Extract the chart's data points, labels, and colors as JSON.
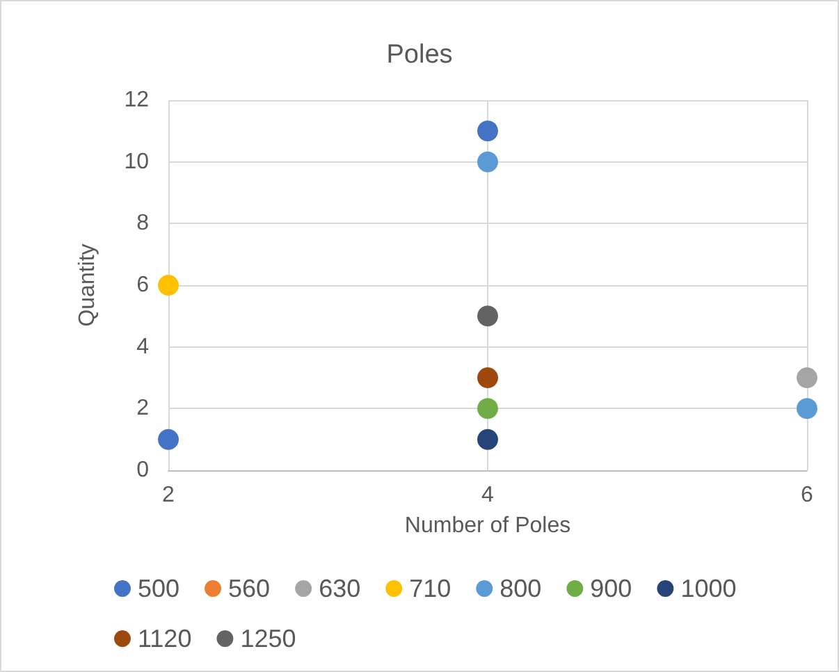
{
  "chart_data": {
    "type": "scatter",
    "title": "Poles",
    "xlabel": "Number of Poles",
    "ylabel": "Quantity",
    "xlim": [
      2,
      6
    ],
    "xticks": [
      2,
      4,
      6
    ],
    "ylim": [
      0,
      12
    ],
    "yticks": [
      0,
      2,
      4,
      6,
      8,
      10,
      12
    ],
    "grid": true,
    "legend": "bottom",
    "marker": "circle",
    "series": [
      {
        "name": "500",
        "color": "#4472c4",
        "x": [
          2,
          4
        ],
        "values": [
          1,
          11
        ]
      },
      {
        "name": "560",
        "color": "#ed7d31"
      },
      {
        "name": "630",
        "color": "#a5a5a5",
        "x": [
          6
        ],
        "values": [
          3
        ]
      },
      {
        "name": "710",
        "color": "#ffc000",
        "x": [
          2
        ],
        "values": [
          6
        ]
      },
      {
        "name": "800",
        "color": "#5b9bd5",
        "x": [
          4,
          6
        ],
        "values": [
          10,
          2
        ]
      },
      {
        "name": "900",
        "color": "#70ad47",
        "x": [
          4
        ],
        "values": [
          2
        ]
      },
      {
        "name": "1000",
        "color": "#264478",
        "x": [
          4
        ],
        "values": [
          1
        ]
      },
      {
        "name": "1120",
        "color": "#9e480e",
        "x": [
          4
        ],
        "values": [
          3
        ]
      },
      {
        "name": "1250",
        "color": "#636363",
        "x": [
          4
        ],
        "values": [
          5
        ]
      }
    ]
  }
}
